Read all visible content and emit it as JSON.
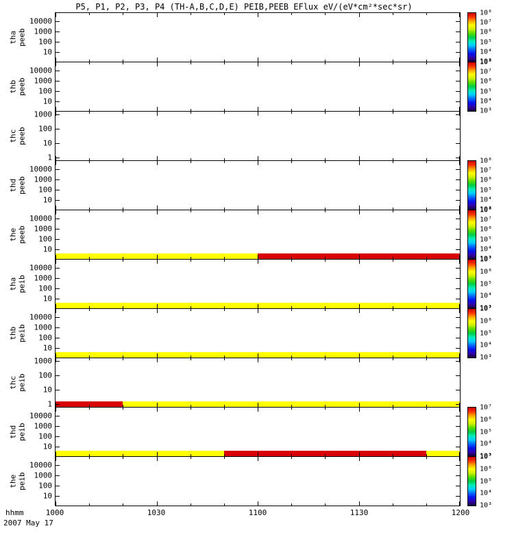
{
  "title": "P5, P1, P2, P3, P4 (TH-A,B,C,D,E) PEIB,PEEB EFlux eV/(eV*cm²*sec*sr)",
  "x_axis": {
    "unit_label": "hhmm",
    "date_label": "2007 May 17",
    "ticks": [
      "1000",
      "1030",
      "1100",
      "1130",
      "1200"
    ]
  },
  "chart_data": {
    "type": "heatmap",
    "title": "P5, P1, P2, P3, P4 (TH-A,B,C,D,E) PEIB,PEEB EFlux eV/(eV*cm²*sec*sr)",
    "x_range": [
      "1000",
      "1200"
    ],
    "x_tick_labels": [
      "1000",
      "1030",
      "1100",
      "1130",
      "1200"
    ],
    "x_unit": "hhmm",
    "date": "2007 May 17",
    "colorbar_gradient": [
      "#16003a",
      "#3300aa",
      "#0011ee",
      "#0066ff",
      "#00ccff",
      "#00eebb",
      "#00cc44",
      "#55dd00",
      "#ccee00",
      "#ffff00",
      "#ffa500",
      "#ff3300",
      "#c80000"
    ],
    "stripe_colors": {
      "saturated_high": "#d80000",
      "mid_high": "#ffff00"
    },
    "panels": [
      {
        "id": "tha-peeb",
        "label_line1": "tha",
        "label_line2": "peeb",
        "ytick_style": "compact",
        "yticks": [
          "10000",
          "1000",
          "100",
          "10"
        ],
        "colorbar": [
          "10⁸",
          "10⁷",
          "10⁶",
          "10⁵",
          "10⁴",
          "10³"
        ],
        "stripe": []
      },
      {
        "id": "thb-peeb",
        "label_line1": "thb",
        "label_line2": "peeb",
        "ytick_style": "compact",
        "yticks": [
          "10000",
          "1000",
          "100",
          "10"
        ],
        "colorbar": [
          "10⁸",
          "10⁷",
          "10⁶",
          "10⁵",
          "10⁴",
          "10³"
        ],
        "stripe": []
      },
      {
        "id": "thc-peeb",
        "label_line1": "thc",
        "label_line2": "peeb",
        "ytick_style": "spread",
        "yticks": [
          "1000",
          "100",
          "10",
          "1"
        ],
        "colorbar": null,
        "stripe": []
      },
      {
        "id": "thd-peeb",
        "label_line1": "thd",
        "label_line2": "peeb",
        "ytick_style": "compact",
        "yticks": [
          "10000",
          "1000",
          "100",
          "10"
        ],
        "colorbar": [
          "10⁸",
          "10⁷",
          "10⁶",
          "10⁵",
          "10⁴",
          "10³"
        ],
        "stripe": []
      },
      {
        "id": "the-peeb",
        "label_line1": "the",
        "label_line2": "peeb",
        "ytick_style": "compact",
        "yticks": [
          "10000",
          "1000",
          "100",
          "10"
        ],
        "colorbar": [
          "10⁸",
          "10⁷",
          "10⁶",
          "10⁵",
          "10⁴",
          "10³"
        ],
        "stripe": [
          {
            "start": "1000",
            "end": "1100",
            "color": "#ffff00"
          },
          {
            "start": "1100",
            "end": "1200",
            "color": "#d80000"
          }
        ]
      },
      {
        "id": "tha-peib",
        "label_line1": "tha",
        "label_line2": "peib",
        "ytick_style": "compact",
        "yticks": [
          "10000",
          "1000",
          "100",
          "10"
        ],
        "colorbar": [
          "10⁷",
          "10⁶",
          "10⁵",
          "10⁴",
          "10³"
        ],
        "stripe": [
          {
            "start": "1000",
            "end": "1200",
            "color": "#ffff00"
          }
        ]
      },
      {
        "id": "thb-peib",
        "label_line1": "thb",
        "label_line2": "peib",
        "ytick_style": "compact",
        "yticks": [
          "10000",
          "1000",
          "100",
          "10"
        ],
        "colorbar": [
          "10⁷",
          "10⁶",
          "10⁵",
          "10⁴",
          "10³"
        ],
        "stripe": [
          {
            "start": "1000",
            "end": "1200",
            "color": "#ffff00"
          }
        ]
      },
      {
        "id": "thc-peib",
        "label_line1": "thc",
        "label_line2": "peib",
        "ytick_style": "spread",
        "yticks": [
          "1000",
          "100",
          "10",
          "1"
        ],
        "colorbar": null,
        "stripe": [
          {
            "start": "1000",
            "end": "1020",
            "color": "#d80000"
          },
          {
            "start": "1020",
            "end": "1200",
            "color": "#ffff00"
          }
        ]
      },
      {
        "id": "thd-peib",
        "label_line1": "thd",
        "label_line2": "peib",
        "ytick_style": "compact",
        "yticks": [
          "10000",
          "1000",
          "100",
          "10"
        ],
        "colorbar": [
          "10⁷",
          "10⁶",
          "10⁵",
          "10⁴",
          "10³"
        ],
        "stripe": [
          {
            "start": "1000",
            "end": "1050",
            "color": "#ffff00"
          },
          {
            "start": "1050",
            "end": "1150",
            "color": "#d80000"
          },
          {
            "start": "1150",
            "end": "1200",
            "color": "#ffff00"
          }
        ]
      },
      {
        "id": "the-peib",
        "label_line1": "the",
        "label_line2": "peib",
        "ytick_style": "compact",
        "yticks": [
          "10000",
          "1000",
          "100",
          "10"
        ],
        "colorbar": [
          "10⁷",
          "10⁶",
          "10⁵",
          "10⁴",
          "10³"
        ],
        "stripe": []
      }
    ]
  }
}
